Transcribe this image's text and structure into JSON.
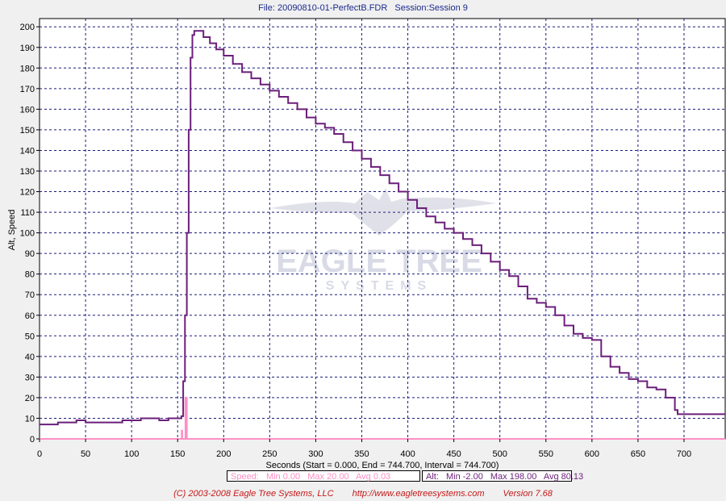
{
  "header": {
    "file": "File: 20090810-01-PerfectB.FDR",
    "session": "Session:Session 9"
  },
  "watermark": {
    "brand": "EAGLE TREE",
    "sub": "SYSTEMS"
  },
  "colors": {
    "plot_bg": "#ffffff",
    "grid": "#1a1a7a",
    "alt_series": "#6b1f7a",
    "speed_series": "#ff8fc4",
    "header_text": "#1c2a8c",
    "footer_text": "#c61818"
  },
  "legend": {
    "speed": {
      "name": "Speed:",
      "min": "Min 0.00",
      "max": "Max 20.00",
      "avg": "Avg 0.03"
    },
    "alt": {
      "name": "Alt:",
      "min": "Min -2.00",
      "max": "Max 198.00",
      "avg": "Avg 80.13"
    }
  },
  "footer": {
    "copyright": "(C) 2003-2008 Eagle Tree Systems, LLC",
    "url": "http://www.eagletreesystems.com",
    "version": "Version 7.68"
  },
  "chart_data": {
    "type": "line",
    "title": "",
    "xlabel": "Seconds (Start = 0.000,  End = 744.700,  Interval =  744.700)",
    "ylabel": "Alt, Speed",
    "xlim": [
      0,
      744.7
    ],
    "ylim": [
      0,
      204
    ],
    "x_ticks": [
      0,
      50,
      100,
      150,
      200,
      250,
      300,
      350,
      400,
      450,
      500,
      550,
      600,
      650,
      700
    ],
    "y_ticks": [
      0,
      10,
      20,
      30,
      40,
      50,
      60,
      70,
      80,
      90,
      100,
      110,
      120,
      130,
      140,
      150,
      160,
      170,
      180,
      190,
      200
    ],
    "grid": true,
    "series": [
      {
        "name": "Alt",
        "color": "#6b1f7a",
        "points": [
          [
            0,
            7
          ],
          [
            10,
            7
          ],
          [
            20,
            8
          ],
          [
            30,
            8
          ],
          [
            40,
            9
          ],
          [
            50,
            8
          ],
          [
            60,
            8
          ],
          [
            70,
            8
          ],
          [
            80,
            8
          ],
          [
            90,
            9
          ],
          [
            100,
            9
          ],
          [
            110,
            10
          ],
          [
            120,
            10
          ],
          [
            130,
            9
          ],
          [
            140,
            10
          ],
          [
            152,
            10
          ],
          [
            154,
            11
          ],
          [
            156,
            28
          ],
          [
            158,
            60
          ],
          [
            160,
            100
          ],
          [
            162,
            150
          ],
          [
            164,
            185
          ],
          [
            166,
            196
          ],
          [
            168,
            198
          ],
          [
            172,
            198
          ],
          [
            178,
            195
          ],
          [
            185,
            192
          ],
          [
            192,
            189
          ],
          [
            200,
            186
          ],
          [
            210,
            182
          ],
          [
            220,
            178
          ],
          [
            230,
            175
          ],
          [
            240,
            172
          ],
          [
            250,
            169
          ],
          [
            260,
            166
          ],
          [
            270,
            163
          ],
          [
            280,
            160
          ],
          [
            290,
            156
          ],
          [
            300,
            153
          ],
          [
            310,
            151
          ],
          [
            320,
            148
          ],
          [
            330,
            144
          ],
          [
            340,
            140
          ],
          [
            350,
            136
          ],
          [
            360,
            132
          ],
          [
            370,
            128
          ],
          [
            380,
            124
          ],
          [
            390,
            120
          ],
          [
            400,
            116
          ],
          [
            410,
            112
          ],
          [
            420,
            108
          ],
          [
            430,
            105
          ],
          [
            440,
            102
          ],
          [
            450,
            100
          ],
          [
            460,
            97
          ],
          [
            470,
            94
          ],
          [
            480,
            90
          ],
          [
            490,
            86
          ],
          [
            500,
            82
          ],
          [
            510,
            79
          ],
          [
            520,
            74
          ],
          [
            530,
            68
          ],
          [
            540,
            66
          ],
          [
            550,
            64
          ],
          [
            560,
            60
          ],
          [
            570,
            55
          ],
          [
            580,
            51
          ],
          [
            590,
            49
          ],
          [
            600,
            48
          ],
          [
            610,
            40
          ],
          [
            620,
            35
          ],
          [
            630,
            32
          ],
          [
            640,
            29
          ],
          [
            650,
            28
          ],
          [
            660,
            25
          ],
          [
            670,
            24
          ],
          [
            680,
            20
          ],
          [
            690,
            14
          ],
          [
            693,
            12
          ],
          [
            700,
            12
          ],
          [
            720,
            12
          ],
          [
            744.7,
            12
          ]
        ]
      },
      {
        "name": "Speed",
        "color": "#ff8fc4",
        "points": [
          [
            0,
            0
          ],
          [
            154,
            0
          ],
          [
            154.5,
            4
          ],
          [
            155,
            0
          ],
          [
            158,
            0
          ],
          [
            158.5,
            20
          ],
          [
            159.5,
            20
          ],
          [
            160,
            0
          ],
          [
            744.7,
            0
          ]
        ]
      }
    ]
  }
}
